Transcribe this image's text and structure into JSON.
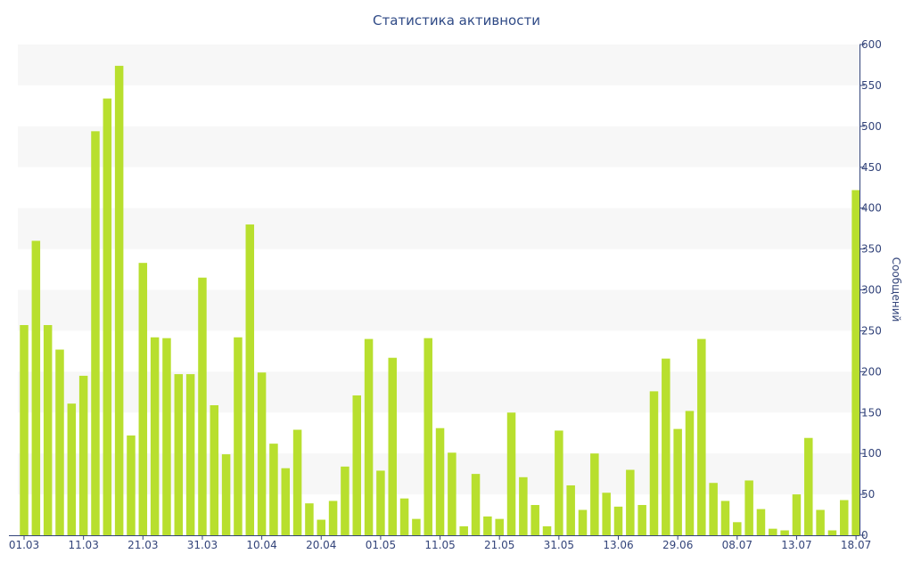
{
  "chart_data": {
    "type": "bar",
    "title": "Статистика активности",
    "ylabel": "Сообщений",
    "xlabel": "",
    "ylim": [
      0,
      600
    ],
    "y_ticks": [
      0,
      50,
      100,
      150,
      200,
      250,
      300,
      350,
      400,
      450,
      500,
      550,
      600
    ],
    "y_axis_side": "right",
    "x_tick_labels": [
      {
        "label": "01.03",
        "index": 0
      },
      {
        "label": "11.03",
        "index": 5
      },
      {
        "label": "21.03",
        "index": 10
      },
      {
        "label": "31.03",
        "index": 15
      },
      {
        "label": "10.04",
        "index": 20
      },
      {
        "label": "20.04",
        "index": 25
      },
      {
        "label": "01.05",
        "index": 30
      },
      {
        "label": "11.05",
        "index": 35
      },
      {
        "label": "21.05",
        "index": 40
      },
      {
        "label": "31.05",
        "index": 45
      },
      {
        "label": "13.06",
        "index": 50
      },
      {
        "label": "29.06",
        "index": 55
      },
      {
        "label": "08.07",
        "index": 60
      },
      {
        "label": "13.07",
        "index": 65
      },
      {
        "label": "18.07",
        "index": 70
      }
    ],
    "bar_color": "#b8df2e",
    "grid": "alternating horizontal bands",
    "values": [
      257,
      360,
      257,
      227,
      161,
      195,
      494,
      534,
      574,
      122,
      333,
      242,
      241,
      197,
      197,
      315,
      159,
      99,
      242,
      380,
      199,
      112,
      82,
      129,
      39,
      19,
      42,
      84,
      171,
      240,
      79,
      217,
      45,
      20,
      241,
      131,
      101,
      11,
      75,
      23,
      20,
      150,
      71,
      37,
      11,
      128,
      61,
      31,
      100,
      52,
      35,
      80,
      37,
      176,
      216,
      130,
      152,
      240,
      64,
      42,
      16,
      67,
      32,
      8,
      6,
      50,
      119,
      31,
      6,
      43,
      422
    ]
  }
}
